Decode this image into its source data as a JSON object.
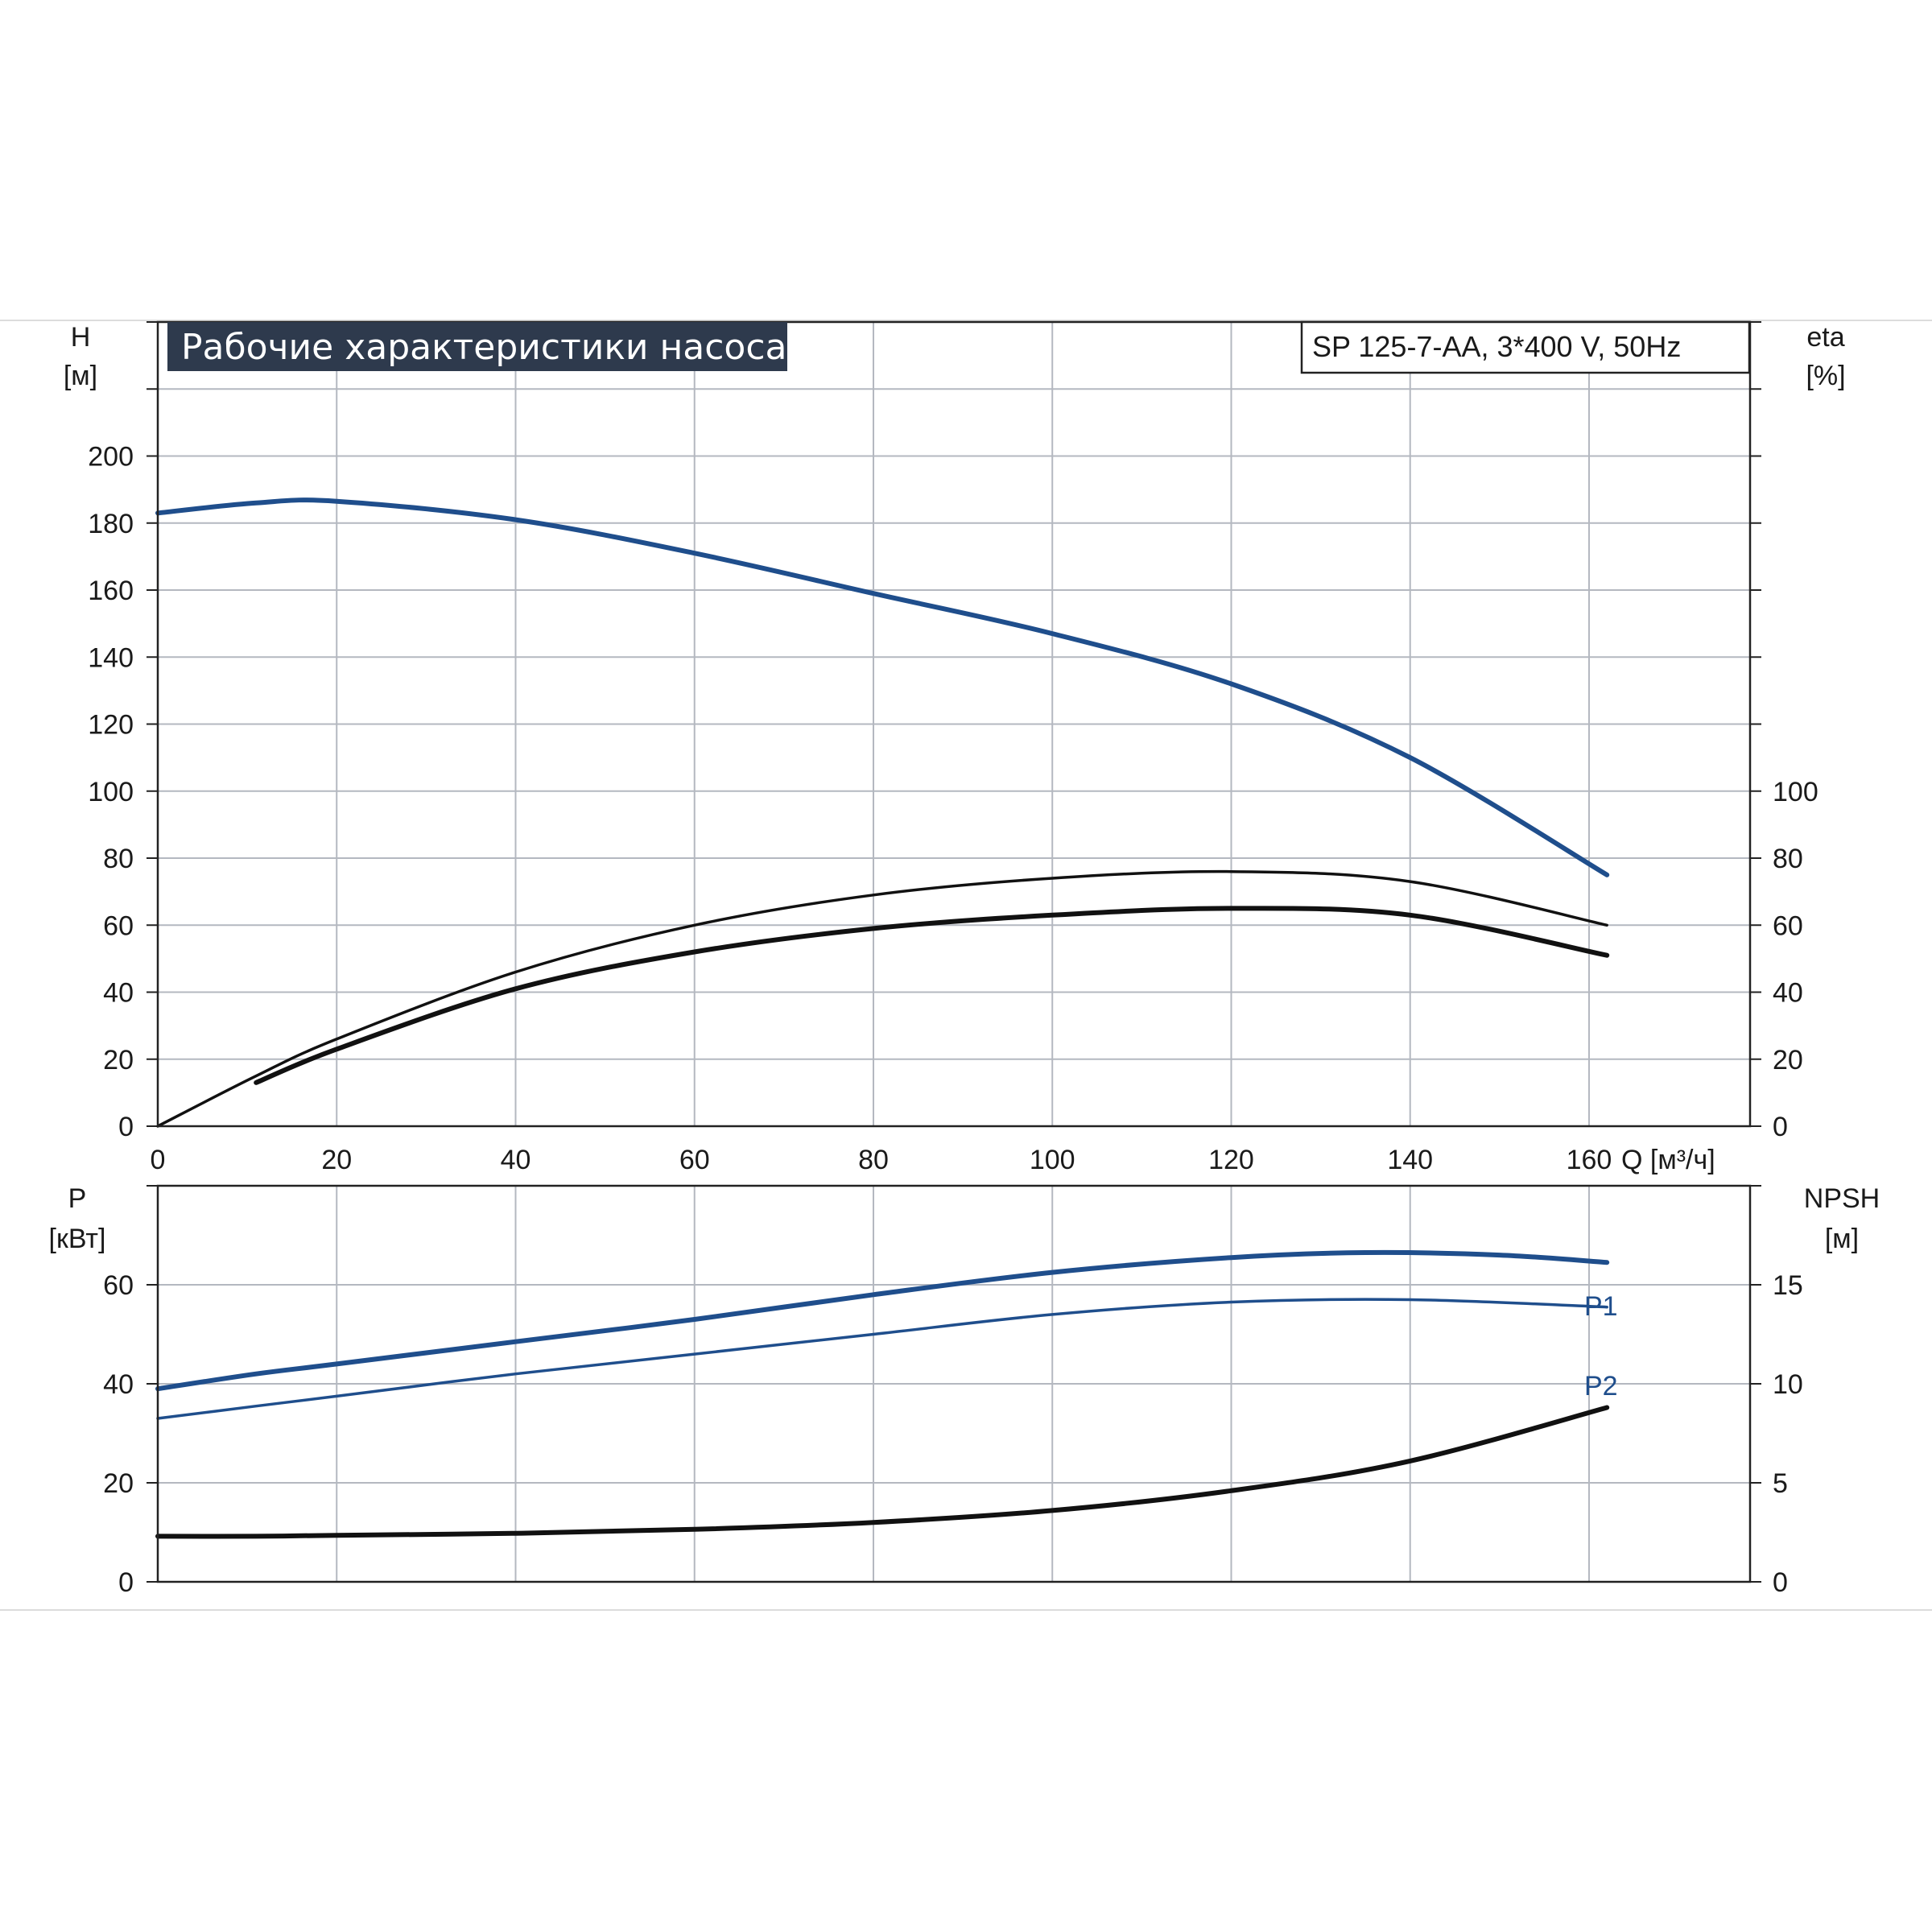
{
  "title": "Рабочие характеристики насоса",
  "model": "SP 125-7-AA, 3*400 V, 50Hz",
  "colors": {
    "blue": "#1f4e8c",
    "black": "#111111",
    "title_bg": "#2e3a4d",
    "grid": "#b4b8c0"
  },
  "chart_data": [
    {
      "type": "line",
      "id": "head-efficiency",
      "x_axis": {
        "label": "Q [м³/ч]",
        "ticks": [
          "0",
          "20",
          "40",
          "60",
          "80",
          "100",
          "120",
          "140",
          "160"
        ],
        "range": [
          0,
          178
        ],
        "grid": true
      },
      "y_axis_left": {
        "label_top": "H",
        "label_unit": "[м]",
        "ticks": [
          "0",
          "20",
          "40",
          "60",
          "80",
          "100",
          "120",
          "140",
          "160",
          "180",
          "200"
        ],
        "range": [
          0,
          240
        ],
        "grid": true
      },
      "y_axis_right": {
        "label_top": "eta",
        "label_unit": "[%]",
        "ticks": [
          "0",
          "20",
          "40",
          "60",
          "80",
          "100"
        ],
        "range": [
          0,
          240
        ]
      },
      "series": [
        {
          "key": "H",
          "axis": "left",
          "color": "#1f4e8c",
          "x": [
            0,
            11,
            20,
            40,
            60,
            80,
            100,
            120,
            140,
            162
          ],
          "y": [
            183,
            186,
            186.5,
            181,
            171,
            159,
            147,
            132,
            110,
            75
          ]
        },
        {
          "key": "eta_hydraulic",
          "axis": "right",
          "color": "#111111",
          "x": [
            0,
            11,
            20,
            40,
            60,
            80,
            100,
            120,
            140,
            162
          ],
          "y": [
            0,
            15,
            26,
            46,
            60,
            69,
            74,
            76,
            73,
            60
          ]
        },
        {
          "key": "eta_total",
          "axis": "right",
          "color": "#111111",
          "x": [
            11,
            20,
            40,
            60,
            80,
            100,
            120,
            140,
            162
          ],
          "y": [
            13,
            23,
            41,
            52,
            59,
            63,
            65,
            63,
            51
          ]
        }
      ]
    },
    {
      "type": "line",
      "id": "power-npsh",
      "x_axis": {
        "range": [
          0,
          178
        ],
        "grid": true
      },
      "y_axis_left": {
        "label_top": "P",
        "label_unit": "[кВт]",
        "ticks": [
          "0",
          "20",
          "40",
          "60"
        ],
        "range": [
          0,
          80
        ],
        "grid": true
      },
      "y_axis_right": {
        "label_top": "NPSH",
        "label_unit": "[м]",
        "ticks": [
          "0",
          "5",
          "10",
          "15"
        ],
        "range": [
          0,
          20
        ]
      },
      "series": [
        {
          "name": "P1",
          "axis": "left",
          "color": "#1f4e8c",
          "x": [
            0,
            11,
            20,
            40,
            60,
            80,
            100,
            120,
            135,
            150,
            162
          ],
          "y": [
            39,
            42,
            44,
            48.5,
            53,
            58,
            62.5,
            65.5,
            66.5,
            66,
            64.5
          ]
        },
        {
          "name": "P2",
          "axis": "left",
          "color": "#1f4e8c",
          "x": [
            0,
            11,
            20,
            40,
            60,
            80,
            100,
            120,
            140,
            162
          ],
          "y": [
            33,
            35.5,
            37.5,
            42,
            46,
            50,
            54,
            56.5,
            57,
            55.5
          ]
        },
        {
          "key": "NPSH",
          "axis": "right",
          "color": "#111111",
          "x": [
            0,
            11,
            20,
            40,
            60,
            80,
            100,
            120,
            140,
            162
          ],
          "y": [
            2.3,
            2.3,
            2.35,
            2.45,
            2.65,
            3.0,
            3.6,
            4.6,
            6.1,
            8.8
          ]
        }
      ]
    }
  ]
}
